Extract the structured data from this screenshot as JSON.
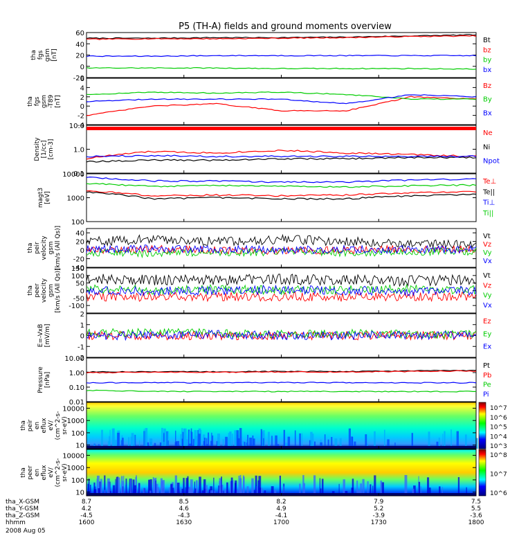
{
  "title": "P5 (TH-A) fields and ground moments overview",
  "colors": {
    "black": "#000000",
    "red": "#ff0000",
    "green": "#00cc00",
    "blue": "#0000ff",
    "lime": "#00ee00"
  },
  "chart_data": [
    {
      "type": "line",
      "ylabel": [
        "tha",
        "fgs",
        "gsm",
        "[nT]"
      ],
      "ylim": [
        -20,
        60
      ],
      "ticks": [
        "60",
        "40",
        "20",
        "0",
        "-20"
      ],
      "tick_values": [
        60,
        40,
        20,
        0,
        -20
      ],
      "series": [
        {
          "name": "Bt",
          "color": "black",
          "values": [
            50,
            50,
            51,
            51,
            52,
            54,
            56
          ]
        },
        {
          "name": "bz",
          "color": "red",
          "values": [
            48,
            49,
            49,
            50,
            51,
            53,
            54
          ]
        },
        {
          "name": "by",
          "color": "green",
          "values": [
            -3,
            -3,
            -3,
            -4,
            -4,
            -4,
            -5
          ]
        },
        {
          "name": "bx",
          "color": "blue",
          "values": [
            18,
            18,
            19,
            19,
            19,
            19,
            19
          ]
        }
      ]
    },
    {
      "type": "line",
      "ylabel": [
        "tha",
        "fgs",
        "gsm",
        "-T89",
        "[nT]"
      ],
      "ylim": [
        -4,
        6
      ],
      "ticks": [
        "6",
        "4",
        "2",
        "0",
        "-2",
        "-4"
      ],
      "tick_values": [
        6,
        4,
        2,
        0,
        -2,
        -4
      ],
      "series": [
        {
          "name": "Bz",
          "color": "red",
          "values": [
            -2,
            0,
            0.5,
            -1,
            -1,
            2,
            1.5
          ]
        },
        {
          "name": "By",
          "color": "green",
          "values": [
            2.5,
            3,
            2.8,
            3,
            2.5,
            1.5,
            1.5
          ]
        },
        {
          "name": "Bx",
          "color": "blue",
          "values": [
            1,
            1.5,
            1.5,
            1.5,
            0.5,
            2.5,
            2
          ]
        }
      ]
    },
    {
      "type": "line",
      "ylabel": [
        "Density",
        "[1/cc]",
        "[cm-3]"
      ],
      "ylim": [
        0.1,
        10
      ],
      "ticks": [
        "10.0",
        "1.0",
        "0.1"
      ],
      "tick_values": [
        10,
        1,
        0.1
      ],
      "series": [
        {
          "name": "Ne",
          "color": "red",
          "values": [
            0.4,
            0.8,
            0.7,
            0.9,
            0.7,
            0.6,
            0.5
          ]
        },
        {
          "name": "Ni",
          "color": "black",
          "values": [
            0.3,
            0.35,
            0.35,
            0.4,
            0.4,
            0.45,
            0.45
          ]
        },
        {
          "name": "Npot",
          "color": "blue",
          "values": [
            0.5,
            0.55,
            0.5,
            0.5,
            0.5,
            0.5,
            0.5
          ]
        }
      ]
    },
    {
      "type": "line",
      "ylabel": [
        "magt3",
        "[eV]"
      ],
      "ylim": [
        100,
        10000
      ],
      "ticks": [
        "10000",
        "1000",
        "100"
      ],
      "tick_values": [
        10000,
        1000,
        100
      ],
      "series": [
        {
          "name": "Te⊥",
          "color": "red",
          "values": [
            2000,
            1200,
            1300,
            1200,
            1300,
            1600,
            1800
          ]
        },
        {
          "name": "Te||",
          "color": "black",
          "values": [
            1800,
            900,
            1000,
            900,
            900,
            1200,
            1400
          ]
        },
        {
          "name": "Ti⊥",
          "color": "blue",
          "values": [
            7000,
            5000,
            5000,
            4500,
            4500,
            5500,
            6000
          ]
        },
        {
          "name": "Ti||",
          "color": "green",
          "values": [
            4000,
            3000,
            3200,
            3000,
            2800,
            3200,
            3400
          ]
        }
      ]
    },
    {
      "type": "line",
      "ylabel": [
        "tha",
        "peir",
        "velocity",
        "gsm",
        "[km/s (All Qs)]"
      ],
      "ylim": [
        -40,
        50
      ],
      "ticks": [
        "40",
        "20",
        "0",
        "-20",
        "-40"
      ],
      "tick_values": [
        40,
        20,
        0,
        -20,
        -40
      ],
      "series": [
        {
          "name": "Vt",
          "color": "black",
          "values": [
            20,
            25,
            20,
            25,
            20,
            15,
            15
          ]
        },
        {
          "name": "Vz",
          "color": "red",
          "values": [
            0,
            2,
            0,
            -2,
            0,
            3,
            2
          ]
        },
        {
          "name": "Vy",
          "color": "green",
          "values": [
            -5,
            -8,
            -5,
            -5,
            -6,
            -4,
            -3
          ]
        },
        {
          "name": "Vx",
          "color": "blue",
          "values": [
            2,
            3,
            2,
            0,
            2,
            1,
            2
          ]
        }
      ]
    },
    {
      "type": "line",
      "ylabel": [
        "tha",
        "peer",
        "velocity",
        "gsm",
        "[km/s (All Qs)]"
      ],
      "ylim": [
        -150,
        150
      ],
      "ticks": [
        "150",
        "100",
        "50",
        "0",
        "-50",
        "-100"
      ],
      "tick_values": [
        150,
        100,
        50,
        0,
        -50,
        -100
      ],
      "series": [
        {
          "name": "Vt",
          "color": "black",
          "values": [
            80,
            70,
            70,
            75,
            70,
            65,
            70
          ]
        },
        {
          "name": "Vz",
          "color": "red",
          "values": [
            -40,
            -45,
            -40,
            -40,
            -45,
            -40,
            -40
          ]
        },
        {
          "name": "Vy",
          "color": "green",
          "values": [
            10,
            5,
            10,
            0,
            5,
            10,
            5
          ]
        },
        {
          "name": "Vx",
          "color": "blue",
          "values": [
            0,
            -5,
            0,
            5,
            0,
            -5,
            0
          ]
        }
      ]
    },
    {
      "type": "line",
      "ylabel": [
        "E=-VxB",
        "[mV/m]"
      ],
      "ylim": [
        -2,
        2
      ],
      "ticks": [
        "2",
        "1",
        "0",
        "-1",
        "-2"
      ],
      "tick_values": [
        2,
        1,
        0,
        -1,
        -2
      ],
      "series": [
        {
          "name": "Ez",
          "color": "red",
          "values": [
            0,
            0,
            0,
            0,
            0,
            0,
            0
          ]
        },
        {
          "name": "Ey",
          "color": "green",
          "values": [
            0.2,
            0.3,
            0.2,
            0.1,
            0.2,
            0.1,
            0.1
          ]
        },
        {
          "name": "Ex",
          "color": "blue",
          "values": [
            0,
            0,
            0.1,
            0,
            0,
            0,
            0
          ]
        }
      ]
    },
    {
      "type": "line",
      "ylabel": [
        "Pressure",
        "[nPa]"
      ],
      "ylim": [
        0.01,
        10
      ],
      "ticks": [
        "10.00",
        "1.00",
        "0.10",
        "0.01"
      ],
      "tick_values": [
        10,
        1,
        0.1,
        0.01
      ],
      "series": [
        {
          "name": "Pt",
          "color": "black",
          "values": [
            1.1,
            1.15,
            1.15,
            1.2,
            1.2,
            1.3,
            1.4
          ]
        },
        {
          "name": "Pb",
          "color": "red",
          "values": [
            1.0,
            1.05,
            1.05,
            1.1,
            1.1,
            1.2,
            1.3
          ]
        },
        {
          "name": "Pe",
          "color": "green",
          "values": [
            0.06,
            0.05,
            0.05,
            0.05,
            0.05,
            0.05,
            0.05
          ]
        },
        {
          "name": "Pi",
          "color": "blue",
          "values": [
            0.2,
            0.2,
            0.2,
            0.21,
            0.2,
            0.2,
            0.2
          ]
        }
      ]
    },
    {
      "type": "heatmap",
      "ylabel": [
        "tha",
        "peir",
        "en",
        "eflux",
        "eV/",
        "(cm^2-s-",
        "sr-eV)"
      ],
      "ylim": [
        5,
        30000
      ],
      "ticks": [
        "10000",
        "1000",
        "100",
        "10"
      ],
      "tick_values": [
        10000,
        1000,
        100,
        10
      ],
      "colorbar": {
        "ticks": [
          "10^7",
          "10^6",
          "10^5",
          "10^4",
          "10^3"
        ]
      }
    },
    {
      "type": "heatmap",
      "ylabel": [
        "tha",
        "peer",
        "en",
        "eflux",
        "eV/",
        "(cm^2-s-",
        "sr-eV)"
      ],
      "ylim": [
        5,
        30000
      ],
      "ticks": [
        "10000",
        "1000",
        "100",
        "10"
      ],
      "tick_values": [
        10000,
        1000,
        100,
        10
      ],
      "colorbar": {
        "ticks": [
          "10^8",
          "10^7",
          "10^6"
        ]
      }
    }
  ],
  "xaxis": {
    "ticks": [
      {
        "x": "8.7",
        "y": "4.2",
        "z": "-4.5",
        "hhmm": "1600"
      },
      {
        "x": "8.5",
        "y": "4.6",
        "z": "-4.3",
        "hhmm": "1630"
      },
      {
        "x": "8.2",
        "y": "4.9",
        "z": "-4.1",
        "hhmm": "1700"
      },
      {
        "x": "7.9",
        "y": "5.2",
        "z": "-3.9",
        "hhmm": "1730"
      },
      {
        "x": "7.5",
        "y": "5.5",
        "z": "-3.6",
        "hhmm": "1800"
      }
    ],
    "row_labels": [
      "tha_X-GSM",
      "tha_Y-GSM",
      "tha_Z-GSM",
      "hhmm",
      "2008 Aug 05"
    ]
  }
}
